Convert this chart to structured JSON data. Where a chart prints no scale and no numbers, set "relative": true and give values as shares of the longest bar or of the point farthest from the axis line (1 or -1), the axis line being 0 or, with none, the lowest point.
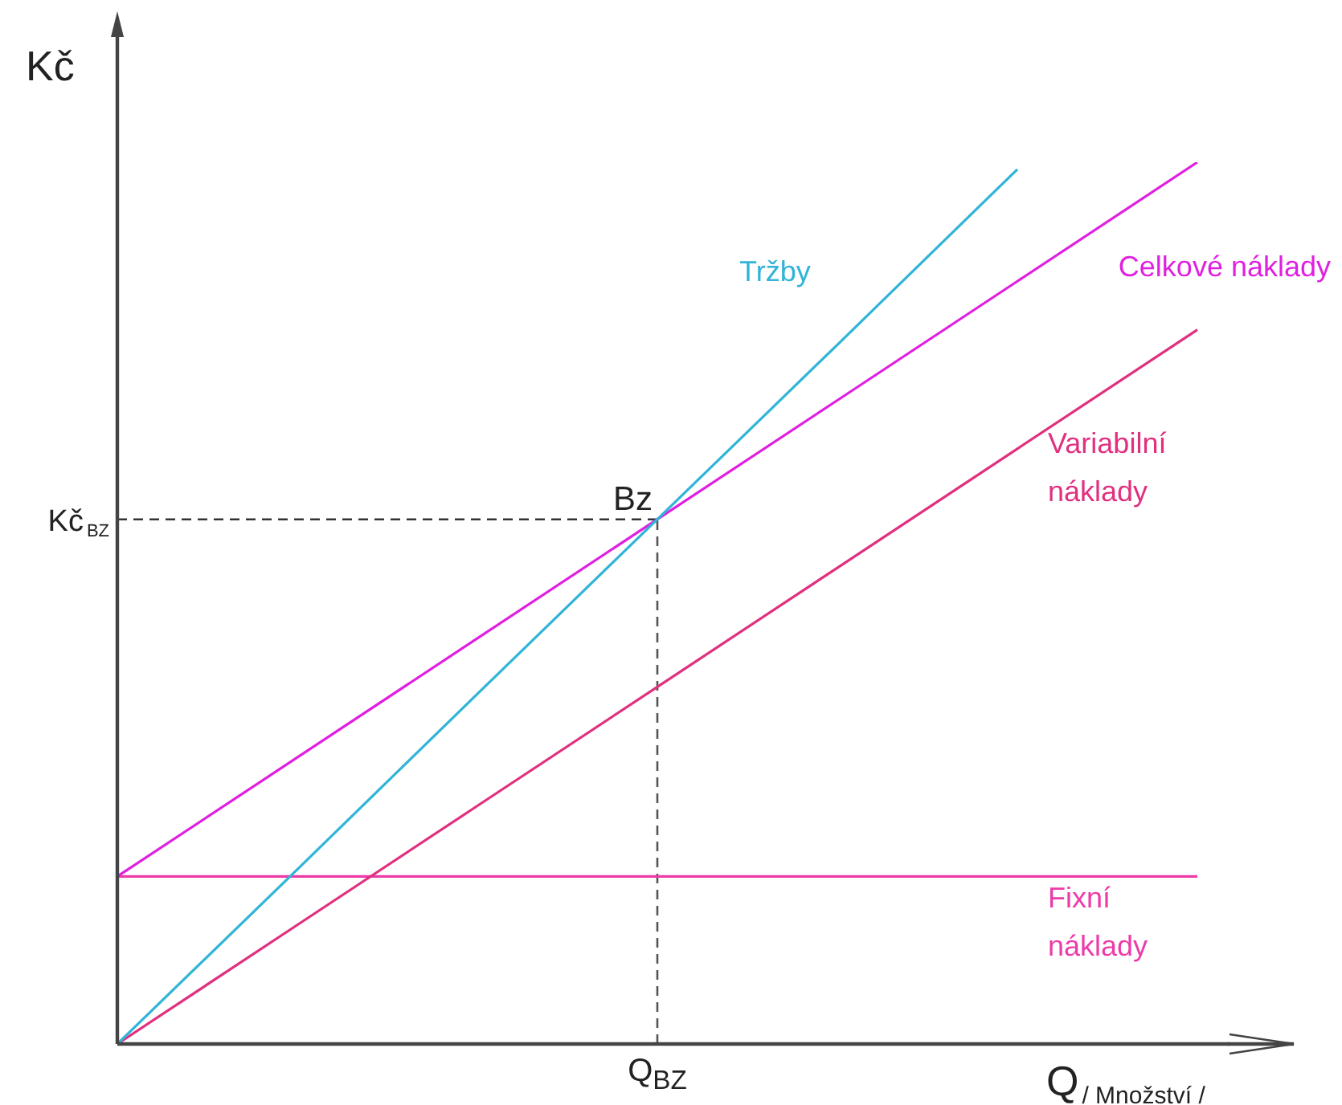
{
  "chart_data": {
    "type": "line",
    "relative": true,
    "categories": [
      null,
      null,
      null,
      null,
      null,
      null,
      null
    ],
    "xlabel": "Q$_{/ Množství /}$",
    "ylabel": "Kč",
    "legend": false,
    "grid": false,
    "marker": "none",
    "line_style": "solid",
    "series": [
      {
        "name": "Tržby",
        "color": "#30b4d8",
        "values": [
          0,
          0.198,
          0.397,
          0.595,
          0.793,
          0.992,
          null
        ]
      },
      {
        "name": "Celkové náklady",
        "color": "#e020e0",
        "values": [
          0.19,
          0.325,
          0.46,
          0.595,
          0.73,
          0.865,
          1.0
        ]
      },
      {
        "name": "Variabilní náklady",
        "color": "#e0307f",
        "values": [
          0,
          0.135,
          0.27,
          0.405,
          0.54,
          0.675,
          0.81
        ]
      },
      {
        "name": "Fixní náklady",
        "color": "#ee3aa8",
        "values": [
          0.19,
          0.19,
          0.19,
          0.19,
          0.19,
          0.19,
          0.19
        ]
      }
    ],
    "ref_lines": [
      {
        "axis": "y",
        "value": 0.595,
        "label": "Kč$_{BZ}$",
        "line_style": "dashed",
        "color": "#333333"
      }
    ],
    "annotations": [
      "Bz",
      "Q$_{BZ}$"
    ]
  }
}
